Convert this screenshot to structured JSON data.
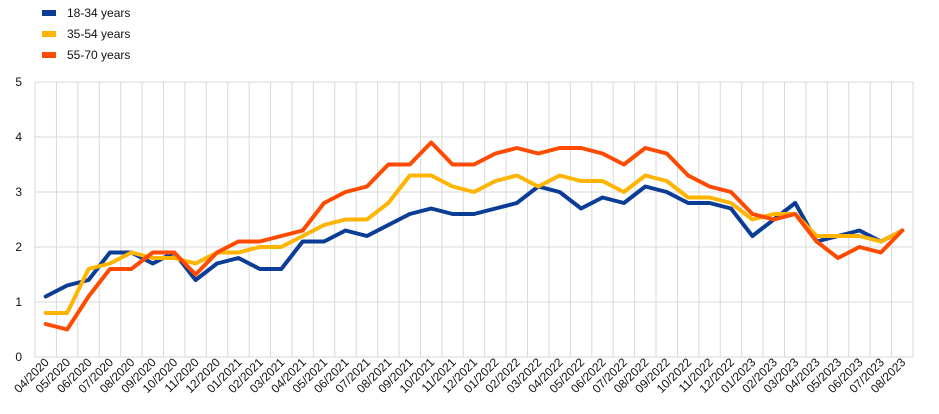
{
  "chart_data": {
    "type": "line",
    "title": "",
    "xlabel": "",
    "ylabel": "",
    "ylim": [
      0,
      5
    ],
    "yticks": [
      "0",
      "1",
      "2",
      "3",
      "4",
      "5"
    ],
    "grid": true,
    "legend_position": "top-left",
    "categories": [
      "04/2020",
      "05/2020",
      "06/2020",
      "07/2020",
      "08/2020",
      "09/2020",
      "10/2020",
      "11/2020",
      "12/2020",
      "01/2021",
      "02/2021",
      "03/2021",
      "04/2021",
      "05/2021",
      "06/2021",
      "07/2021",
      "08/2021",
      "09/2021",
      "10/2021",
      "11/2021",
      "12/2021",
      "01/2022",
      "02/2022",
      "03/2022",
      "04/2022",
      "05/2022",
      "06/2022",
      "07/2022",
      "08/2022",
      "09/2022",
      "10/2022",
      "11/2022",
      "12/2022",
      "01/2023",
      "02/2023",
      "03/2023",
      "04/2023",
      "05/2023",
      "06/2023",
      "07/2023",
      "08/2023"
    ],
    "series": [
      {
        "name": "18-34 years",
        "color": "#0b3c96",
        "values": [
          1.1,
          1.3,
          1.4,
          1.9,
          1.9,
          1.7,
          1.9,
          1.4,
          1.7,
          1.8,
          1.6,
          1.6,
          2.1,
          2.1,
          2.3,
          2.2,
          2.4,
          2.6,
          2.7,
          2.6,
          2.6,
          2.7,
          2.8,
          3.1,
          3.0,
          2.7,
          2.9,
          2.8,
          3.1,
          3.0,
          2.8,
          2.8,
          2.7,
          2.2,
          2.5,
          2.8,
          2.1,
          2.2,
          2.3,
          2.1,
          2.3
        ]
      },
      {
        "name": "35-54 years",
        "color": "#ffb400",
        "values": [
          0.8,
          0.8,
          1.6,
          1.7,
          1.9,
          1.8,
          1.8,
          1.7,
          1.9,
          1.9,
          2.0,
          2.0,
          2.2,
          2.4,
          2.5,
          2.5,
          2.8,
          3.3,
          3.3,
          3.1,
          3.0,
          3.2,
          3.3,
          3.1,
          3.3,
          3.2,
          3.2,
          3.0,
          3.3,
          3.2,
          2.9,
          2.9,
          2.8,
          2.5,
          2.6,
          2.6,
          2.2,
          2.2,
          2.2,
          2.1,
          2.3
        ]
      },
      {
        "name": "55-70 years",
        "color": "#ff4b00",
        "values": [
          0.6,
          0.5,
          1.1,
          1.6,
          1.6,
          1.9,
          1.9,
          1.5,
          1.9,
          2.1,
          2.1,
          2.2,
          2.3,
          2.8,
          3.0,
          3.1,
          3.5,
          3.5,
          3.9,
          3.5,
          3.5,
          3.7,
          3.8,
          3.7,
          3.8,
          3.8,
          3.7,
          3.5,
          3.8,
          3.7,
          3.3,
          3.1,
          3.0,
          2.6,
          2.5,
          2.6,
          2.1,
          1.8,
          2.0,
          1.9,
          2.3
        ]
      }
    ]
  }
}
